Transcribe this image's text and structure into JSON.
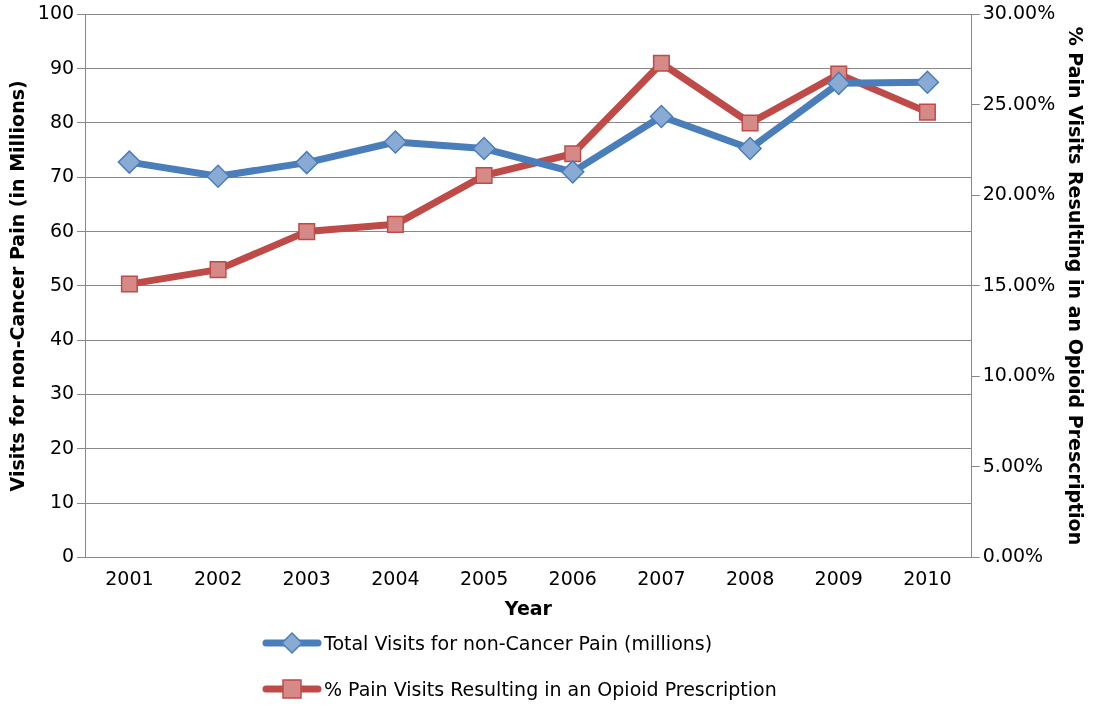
{
  "chart_data": {
    "type": "line",
    "xlabel": "Year",
    "ylabel": "Visits for non-Cancer Pain (in Millions)",
    "y2label": "% Pain Visits Resulting in an Opioid Prescription",
    "categories": [
      "2001",
      "2002",
      "2003",
      "2004",
      "2005",
      "2006",
      "2007",
      "2008",
      "2009",
      "2010"
    ],
    "series": [
      {
        "name": "Total Visits for non-Cancer Pain (millions)",
        "color": "#4a7ebb",
        "marker": "diamond",
        "values": [
          72.8,
          70.2,
          72.7,
          76.5,
          75.3,
          71,
          81.2,
          75.3,
          87.3,
          87.5
        ]
      },
      {
        "name": "% Pain Visits Resulting in an Opioid Prescription",
        "color": "#be4b48",
        "marker": "square",
        "axis": "y2",
        "values": [
          15.1,
          15.9,
          18.0,
          18.4,
          21.1,
          22.3,
          27.3,
          24.0,
          26.7,
          24.6
        ]
      }
    ],
    "ylim": [
      0,
      100
    ],
    "yticks": [
      0,
      10,
      20,
      30,
      40,
      50,
      60,
      70,
      80,
      90,
      100
    ],
    "y2lim": [
      0,
      30
    ],
    "y2ticks": [
      {
        "value": 0,
        "label": "0.00%"
      },
      {
        "value": 5,
        "label": "5.00%"
      },
      {
        "value": 10,
        "label": "10.00%"
      },
      {
        "value": 15,
        "label": "15.00%"
      },
      {
        "value": 20,
        "label": "20.00%"
      },
      {
        "value": 25,
        "label": "25.00%"
      },
      {
        "value": 30,
        "label": "30.00%"
      }
    ],
    "grid": "y",
    "legend": "bottom"
  }
}
